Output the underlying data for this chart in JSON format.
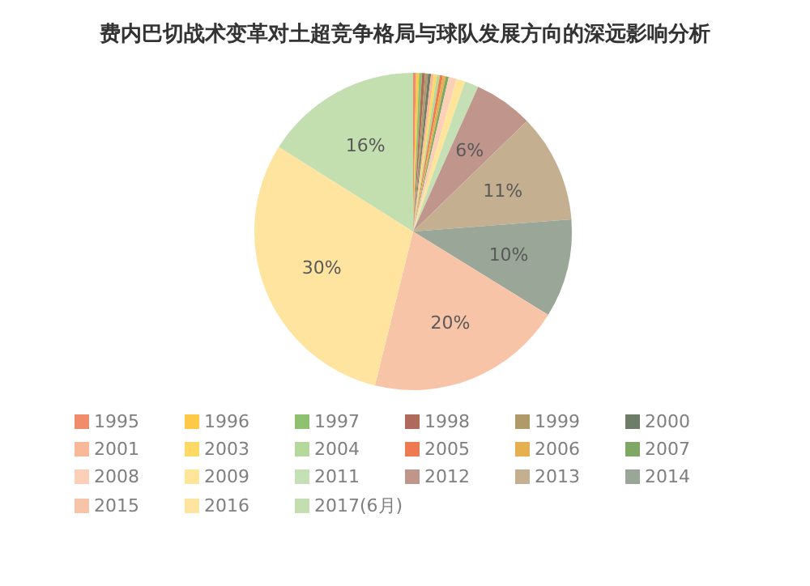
{
  "chart_data": {
    "type": "pie",
    "title": "费内巴切战术变革对土超竞争格局与球队发展方向的深远影响分析",
    "categories": [
      "1995",
      "1996",
      "1997",
      "1998",
      "1999",
      "2000",
      "2001",
      "2003",
      "2004",
      "2005",
      "2006",
      "2007",
      "2008",
      "2009",
      "2011",
      "2012",
      "2013",
      "2014",
      "2015",
      "2016",
      "2017(6月)"
    ],
    "values": [
      0.3,
      0.3,
      0.3,
      0.3,
      0.3,
      0.3,
      0.3,
      0.3,
      0.3,
      0.3,
      0.3,
      0.3,
      0.8,
      0.9,
      1.4,
      6,
      11,
      10,
      20,
      30,
      16
    ],
    "value_labels": [
      null,
      null,
      null,
      null,
      null,
      null,
      null,
      null,
      null,
      null,
      null,
      null,
      null,
      null,
      null,
      "6%",
      "11%",
      "10%",
      "20%",
      "30%",
      "16%"
    ],
    "colors": [
      "#f08c6c",
      "#ffc94a",
      "#8fc270",
      "#b06a5c",
      "#b09a6a",
      "#6e7d68",
      "#f8b89a",
      "#ffd966",
      "#b5d99c",
      "#ee7a52",
      "#e6b050",
      "#7fa866",
      "#fbcfb8",
      "#ffe599",
      "#c5e0b4",
      "#c0958c",
      "#c4b090",
      "#9aa698",
      "#f8c4a8",
      "#ffe4a0",
      "#c3dfb0"
    ],
    "legend": "bottom"
  }
}
